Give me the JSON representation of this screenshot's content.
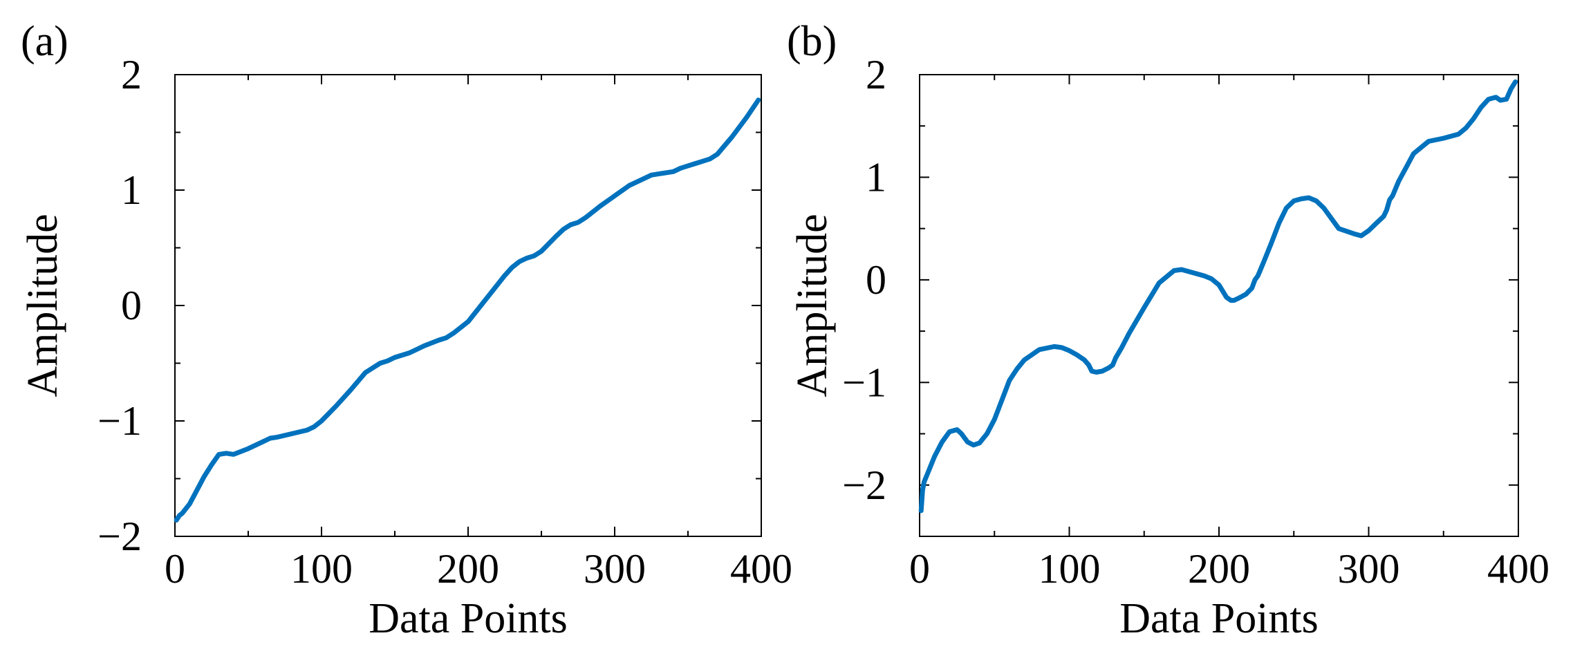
{
  "chart_data": [
    {
      "type": "line",
      "panel_label": "(a)",
      "xlabel": "Data Points",
      "ylabel": "Amplitude",
      "xlim": [
        0,
        400
      ],
      "ylim": [
        -2,
        2
      ],
      "xticks": [
        0,
        100,
        200,
        300,
        400
      ],
      "xtick_labels": [
        "0",
        "100",
        "200",
        "300",
        "400"
      ],
      "yticks": [
        -2,
        -1,
        0,
        1,
        2
      ],
      "ytick_labels": [
        "−2",
        "−1",
        "0",
        "1",
        "2"
      ],
      "y_minor_step": 0.5,
      "grid": false,
      "color": "#0072BD",
      "series": [
        {
          "x": [
            1,
            3,
            5,
            10,
            15,
            20,
            25,
            30,
            35,
            40,
            50,
            60,
            65,
            70,
            80,
            90,
            95,
            100,
            110,
            120,
            130,
            140,
            145,
            150,
            160,
            165,
            170,
            180,
            185,
            190,
            200,
            210,
            220,
            225,
            230,
            235,
            240,
            245,
            250,
            260,
            265,
            270,
            275,
            280,
            290,
            300,
            310,
            320,
            325,
            330,
            340,
            345,
            350,
            355,
            360,
            365,
            370,
            380,
            390,
            398
          ],
          "y": [
            -1.86,
            -1.82,
            -1.8,
            -1.72,
            -1.6,
            -1.48,
            -1.38,
            -1.29,
            -1.28,
            -1.29,
            -1.24,
            -1.18,
            -1.15,
            -1.14,
            -1.11,
            -1.08,
            -1.05,
            -1.0,
            -0.87,
            -0.73,
            -0.58,
            -0.5,
            -0.48,
            -0.45,
            -0.41,
            -0.38,
            -0.35,
            -0.3,
            -0.28,
            -0.24,
            -0.14,
            0.02,
            0.18,
            0.26,
            0.33,
            0.38,
            0.41,
            0.43,
            0.47,
            0.6,
            0.66,
            0.7,
            0.72,
            0.76,
            0.86,
            0.95,
            1.04,
            1.1,
            1.13,
            1.14,
            1.16,
            1.19,
            1.21,
            1.23,
            1.25,
            1.27,
            1.31,
            1.46,
            1.63,
            1.78
          ]
        }
      ]
    },
    {
      "type": "line",
      "panel_label": "(b)",
      "xlabel": "Data Points",
      "ylabel": "Amplitude",
      "xlim": [
        0,
        400
      ],
      "ylim": [
        -2.5,
        2
      ],
      "xticks": [
        0,
        100,
        200,
        300,
        400
      ],
      "xtick_labels": [
        "0",
        "100",
        "200",
        "300",
        "400"
      ],
      "yticks": [
        -2,
        -1,
        0,
        1,
        2
      ],
      "ytick_labels": [
        "−2",
        "−1",
        "0",
        "1",
        "2"
      ],
      "y_minor_step": 0.5,
      "grid": false,
      "color": "#0072BD",
      "series": [
        {
          "x": [
            1,
            2,
            3,
            5,
            10,
            15,
            20,
            25,
            28,
            32,
            36,
            40,
            45,
            50,
            55,
            60,
            65,
            70,
            80,
            90,
            95,
            100,
            105,
            110,
            113,
            115,
            118,
            122,
            126,
            129,
            131,
            135,
            140,
            150,
            160,
            170,
            175,
            180,
            185,
            190,
            195,
            200,
            205,
            208,
            210,
            213,
            218,
            222,
            224,
            226,
            230,
            235,
            240,
            245,
            250,
            255,
            260,
            265,
            270,
            280,
            290,
            295,
            300,
            305,
            310,
            312,
            314,
            316,
            320,
            330,
            340,
            350,
            360,
            365,
            370,
            375,
            380,
            385,
            388,
            392,
            395,
            398
          ],
          "y": [
            -2.25,
            -2.05,
            -1.97,
            -1.9,
            -1.72,
            -1.58,
            -1.48,
            -1.46,
            -1.5,
            -1.58,
            -1.61,
            -1.59,
            -1.5,
            -1.36,
            -1.17,
            -0.98,
            -0.87,
            -0.78,
            -0.68,
            -0.65,
            -0.66,
            -0.69,
            -0.73,
            -0.78,
            -0.83,
            -0.89,
            -0.9,
            -0.89,
            -0.86,
            -0.83,
            -0.76,
            -0.66,
            -0.52,
            -0.27,
            -0.03,
            0.09,
            0.1,
            0.08,
            0.06,
            0.04,
            0.01,
            -0.05,
            -0.17,
            -0.2,
            -0.2,
            -0.18,
            -0.14,
            -0.08,
            0.0,
            0.04,
            0.18,
            0.36,
            0.55,
            0.7,
            0.77,
            0.79,
            0.8,
            0.77,
            0.7,
            0.5,
            0.45,
            0.43,
            0.48,
            0.55,
            0.62,
            0.68,
            0.78,
            0.82,
            0.96,
            1.23,
            1.35,
            1.38,
            1.42,
            1.48,
            1.57,
            1.68,
            1.76,
            1.78,
            1.75,
            1.76,
            1.86,
            1.93
          ]
        }
      ]
    }
  ]
}
